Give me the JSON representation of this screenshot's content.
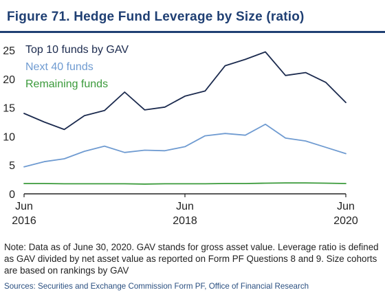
{
  "title": "Figure 71. Hedge Fund Leverage by Size (ratio)",
  "note": "Note: Data as of June 30, 2020. GAV stands for gross asset value. Leverage ratio is defined as GAV divided by net asset value as reported on Form PF Questions 8 and 9. Size cohorts are based on rankings by GAV",
  "source": "Sources: Securities and Exchange Commission Form PF, Office of Financial Research",
  "chart_data": {
    "type": "line",
    "title": "Figure 71. Hedge Fund Leverage by Size (ratio)",
    "xlabel": "",
    "ylabel": "",
    "x": [
      "2016-06",
      "2016-09",
      "2016-12",
      "2017-03",
      "2017-06",
      "2017-09",
      "2017-12",
      "2018-03",
      "2018-06",
      "2018-09",
      "2018-12",
      "2019-03",
      "2019-06",
      "2019-09",
      "2019-12",
      "2020-03",
      "2020-06"
    ],
    "x_ticks": [
      {
        "x": "2016-06",
        "label": [
          "Jun",
          "2016"
        ]
      },
      {
        "x": "2018-06",
        "label": [
          "Jun",
          "2018"
        ]
      },
      {
        "x": "2020-06",
        "label": [
          "Jun",
          "2020"
        ]
      }
    ],
    "ylim": [
      0,
      25
    ],
    "y_ticks": [
      0,
      5,
      10,
      15,
      20,
      25
    ],
    "grid": false,
    "legend_position": "top-left",
    "series": [
      {
        "name": "Top 10 funds by GAV",
        "color": "#1b2a4e",
        "values": [
          14.0,
          12.5,
          11.2,
          13.6,
          14.5,
          17.7,
          14.6,
          15.1,
          17.0,
          17.9,
          22.3,
          23.4,
          24.7,
          20.6,
          21.1,
          19.4,
          15.9
        ]
      },
      {
        "name": "Next 40 funds",
        "color": "#6f9bd1",
        "values": [
          4.7,
          5.6,
          6.1,
          7.4,
          8.3,
          7.2,
          7.6,
          7.5,
          8.2,
          10.1,
          10.5,
          10.2,
          12.1,
          9.7,
          9.2,
          8.1,
          7.0
        ]
      },
      {
        "name": "Remaining funds",
        "color": "#3a9a3a",
        "values": [
          1.8,
          1.8,
          1.75,
          1.75,
          1.75,
          1.75,
          1.7,
          1.75,
          1.75,
          1.75,
          1.8,
          1.8,
          1.85,
          1.9,
          1.9,
          1.85,
          1.8
        ]
      }
    ]
  }
}
